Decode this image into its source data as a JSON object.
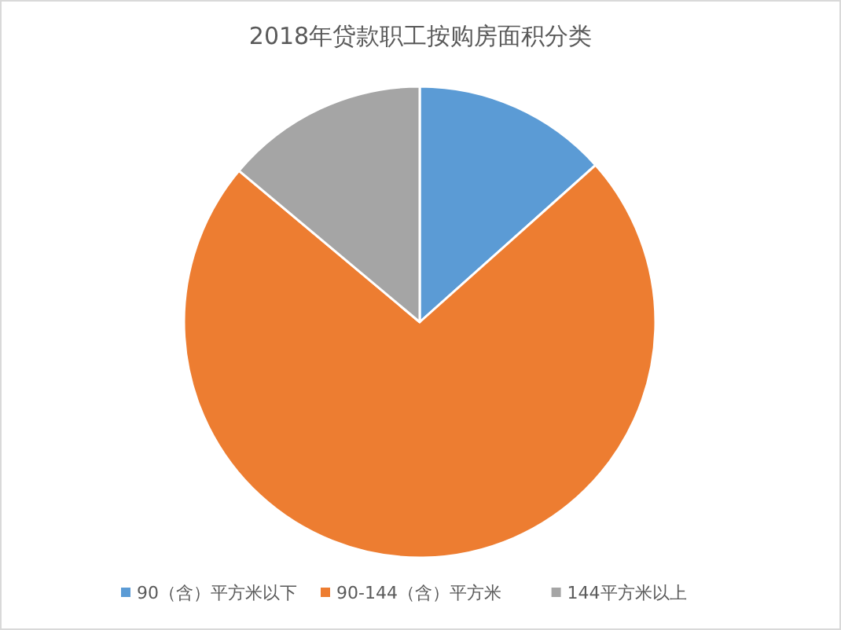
{
  "chart_data": {
    "type": "pie",
    "title": "2018年贷款职工按购房面积分类",
    "categories": [
      "90（含）平方米以下",
      "90-144（含）平方米",
      "144平方米以上"
    ],
    "values": [
      13.4,
      72.7,
      13.9
    ],
    "colors": [
      "#5b9bd5",
      "#ed7d31",
      "#a5a5a5"
    ],
    "legend": "bottom"
  }
}
